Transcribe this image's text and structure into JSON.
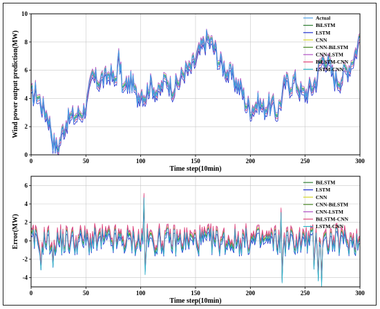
{
  "palette": [
    "#4a9ee6",
    "#2e7d32",
    "#1f2fcf",
    "#d6d62a",
    "#4d8a2a",
    "#b04fc4",
    "#e0457a",
    "#2bb5c9"
  ],
  "chart_data": [
    {
      "type": "line",
      "xlabel": "Time step(10min)",
      "ylabel": "Wind power output prediction(MW)",
      "xlim": [
        0,
        300
      ],
      "ylim": [
        0,
        10
      ],
      "xticks": [
        "0",
        "50",
        "100",
        "150",
        "200",
        "250",
        "300"
      ],
      "yticks": [
        "0",
        "2",
        "4",
        "6",
        "8",
        "10"
      ],
      "grid": true,
      "legend": "top-right",
      "series_names": [
        "Actual",
        "BiLSTM",
        "LSTM",
        "CNN",
        "CNN-BiLSTM",
        "CNN-LSTM",
        "BiLSTM-CNN",
        "LSTM-CNN"
      ],
      "anchors_x": [
        0,
        4,
        8,
        12,
        16,
        20,
        24,
        28,
        32,
        36,
        40,
        44,
        48,
        52,
        56,
        60,
        64,
        68,
        72,
        76,
        80,
        84,
        88,
        92,
        96,
        100,
        104,
        108,
        112,
        116,
        120,
        124,
        128,
        132,
        136,
        140,
        144,
        148,
        152,
        156,
        160,
        164,
        168,
        172,
        176,
        180,
        184,
        188,
        192,
        196,
        200,
        204,
        208,
        212,
        216,
        220,
        224,
        228,
        232,
        236,
        240,
        244,
        248,
        252,
        256,
        260,
        264,
        268,
        272,
        276,
        280,
        284,
        288,
        292,
        296,
        300
      ],
      "anchors_actual": [
        4.0,
        4.5,
        3.8,
        3.2,
        2.6,
        1.0,
        0.4,
        1.5,
        2.4,
        2.6,
        2.7,
        2.9,
        3.2,
        4.0,
        5.5,
        5.2,
        5.4,
        5.3,
        5.9,
        5.0,
        6.8,
        4.5,
        5.0,
        5.2,
        4.0,
        4.6,
        4.2,
        5.0,
        4.8,
        4.2,
        5.0,
        5.4,
        4.8,
        4.9,
        5.3,
        6.0,
        5.9,
        6.4,
        7.0,
        7.6,
        8.2,
        7.9,
        7.4,
        6.5,
        6.3,
        5.7,
        5.5,
        5.0,
        4.6,
        3.6,
        3.3,
        3.5,
        3.7,
        3.2,
        3.6,
        3.4,
        3.0,
        3.9,
        5.1,
        5.0,
        5.3,
        4.8,
        4.2,
        4.5,
        4.8,
        5.3,
        6.5,
        7.0,
        6.2,
        5.5,
        5.3,
        5.6,
        6.0,
        6.6,
        7.3,
        8.4
      ],
      "series_offsets": [
        0,
        0.12,
        -0.3,
        0.2,
        0.05,
        0.3,
        -0.12,
        0.15
      ]
    },
    {
      "type": "line",
      "xlabel": "Time step(10min)",
      "ylabel": "Error(MW)",
      "xlim": [
        0,
        300
      ],
      "ylim": [
        -5,
        7
      ],
      "xticks": [
        "0",
        "50",
        "100",
        "150",
        "200",
        "250",
        "300"
      ],
      "yticks": [
        "-4",
        "-2",
        "0",
        "2",
        "4",
        "6"
      ],
      "grid": true,
      "legend": "top-right",
      "series_names": [
        "BiLSTM",
        "LSTM",
        "CNN",
        "CNN-BiLSTM",
        "CNN-LSTM",
        "BiLSTM-CNN",
        "LSTM-CNN"
      ],
      "spikes": [
        {
          "x": 103,
          "y": 4.8
        },
        {
          "x": 104,
          "y": -3.6
        },
        {
          "x": 228,
          "y": 3.2
        },
        {
          "x": 229,
          "y": -4.5
        },
        {
          "x": 262,
          "y": -4.3
        },
        {
          "x": 265,
          "y": -4.9
        },
        {
          "x": 258,
          "y": -3.0
        },
        {
          "x": 20,
          "y": -2.8
        },
        {
          "x": 9,
          "y": -3.1
        }
      ]
    }
  ]
}
